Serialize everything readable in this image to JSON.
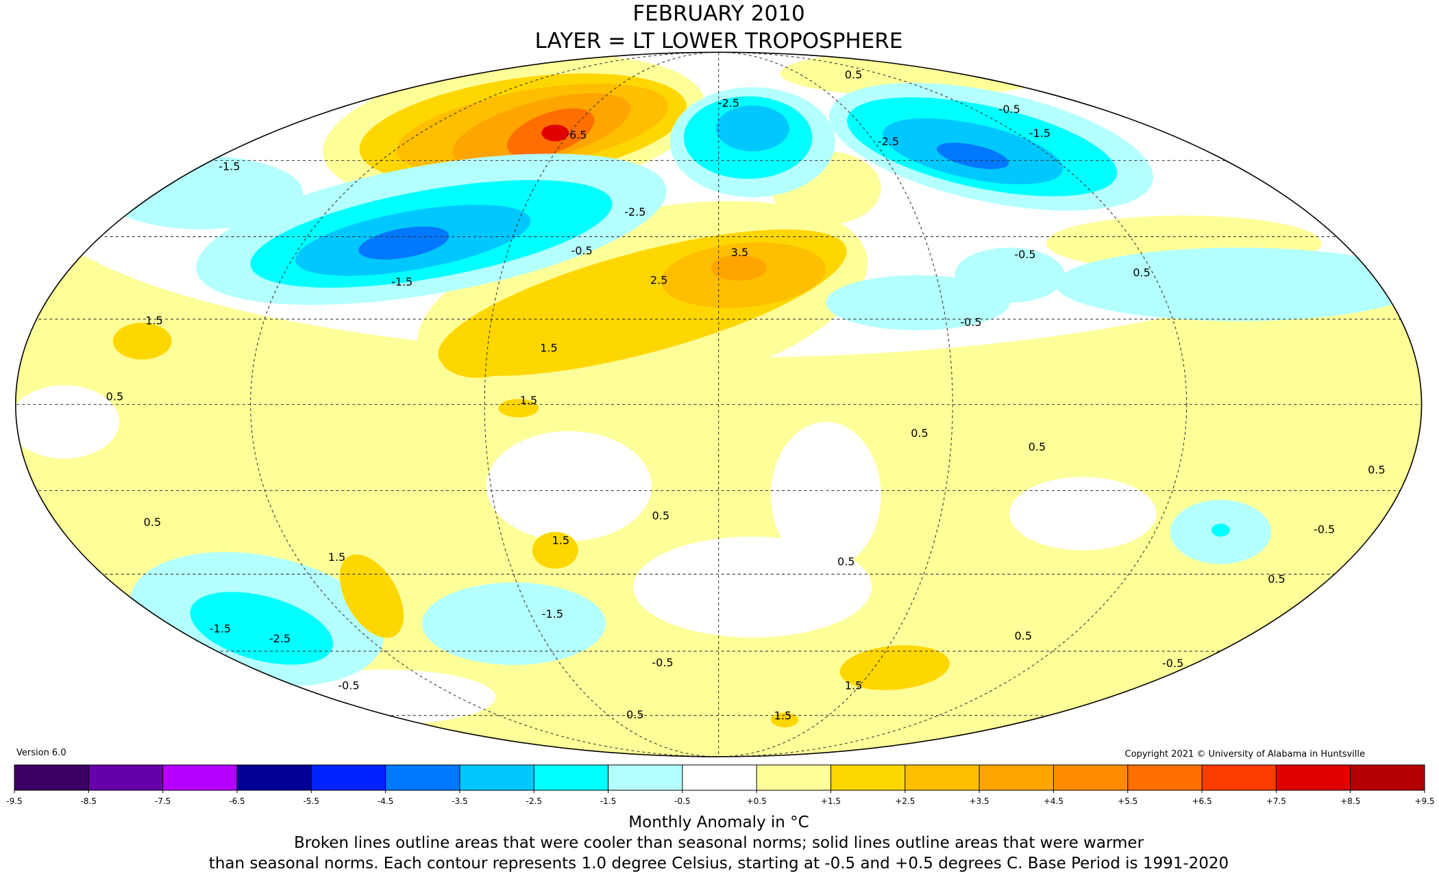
{
  "header": {
    "title": "FEBRUARY 2010",
    "subtitle": "LAYER = LT LOWER TROPOSPHERE"
  },
  "map": {
    "contour_labels": [
      "-1.5",
      "1.5",
      "0.5",
      "0.5",
      "1.5",
      "-1.5",
      "-2.5",
      "-0.5",
      "-1.5",
      "-0.5",
      "-2.5",
      "2.5",
      "3.5",
      "1.5",
      "1.5",
      "0.5",
      "1.5",
      "-1.5",
      "-0.5",
      "0.5",
      "1.5",
      "1.5",
      "0.5",
      "0.5",
      "0.5",
      "0.5",
      "-0.5",
      "0.5",
      "-0.5",
      "-1.5",
      "-2.5",
      "-0.5",
      "0.5",
      "-0.5",
      "0.5",
      "-0.5",
      "0.5",
      "-2.5",
      "6.5"
    ]
  },
  "footer": {
    "version": "Version 6.0",
    "copyright": "Copyright 2021 © University of Alabama in Huntsville",
    "colorbar_label": "Monthly Anomaly in °C",
    "caption_line1": "Broken lines outline areas that were cooler than seasonal norms; solid lines outline areas that were warmer",
    "caption_line2": "than seasonal norms. Each contour represents 1.0 degree Celsius, starting at -0.5 and +0.5 degrees C. Base Period is 1991-2020"
  },
  "colorbar": {
    "ticks": [
      -9.5,
      -8.5,
      -7.5,
      -6.5,
      -5.5,
      -4.5,
      -3.5,
      -2.5,
      -1.5,
      -0.5,
      {
        "value": 0.5,
        "label": "+0.5"
      },
      {
        "value": 1.5,
        "label": "+1.5"
      },
      {
        "value": 2.5,
        "label": "+2.5"
      },
      {
        "value": 3.5,
        "label": "+3.5"
      },
      {
        "value": 4.5,
        "label": "+4.5"
      },
      {
        "value": 5.5,
        "label": "+5.5"
      },
      {
        "value": 6.5,
        "label": "+6.5"
      },
      {
        "value": 7.5,
        "label": "+7.5"
      },
      {
        "value": 8.5,
        "label": "+8.5"
      },
      {
        "value": 9.5,
        "label": "+9.5"
      }
    ],
    "colors": [
      "#3c0064",
      "#6600aa",
      "#b400ff",
      "#000096",
      "#0022ff",
      "#0078ff",
      "#00c8ff",
      "#00ffff",
      "#b4ffff",
      "#ffffff",
      "#ffff99",
      "#ffd700",
      "#ffbe00",
      "#ffa500",
      "#ff8c00",
      "#ff6e00",
      "#ff3c00",
      "#e00000",
      "#b40000"
    ]
  }
}
